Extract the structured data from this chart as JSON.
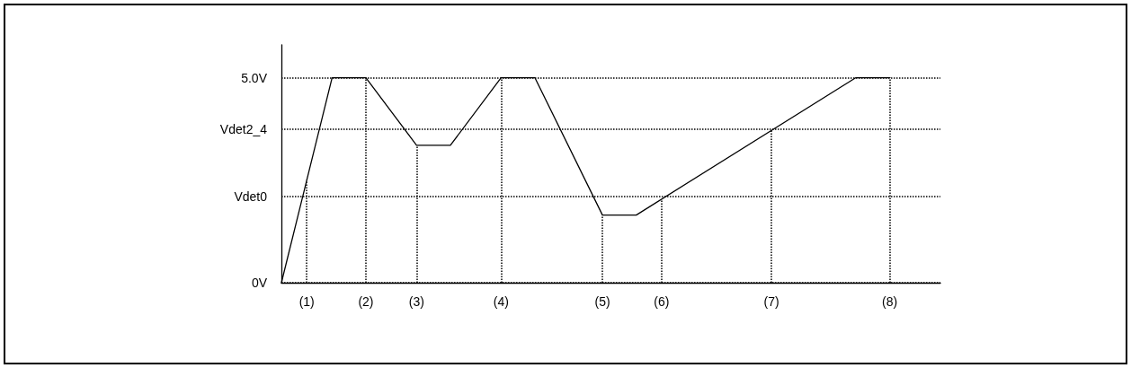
{
  "chart_data": {
    "type": "line",
    "categories": [
      null,
      null,
      null,
      "(1)",
      null,
      null,
      null,
      null,
      null,
      null,
      "(2)",
      null,
      null,
      null,
      null,
      null,
      "(3)",
      null,
      null,
      null,
      null,
      null,
      null,
      null,
      null,
      null,
      "(4)",
      null,
      null,
      null,
      null,
      null,
      null,
      null,
      null,
      null,
      null,
      null,
      "(5)",
      null,
      null,
      null,
      null,
      null,
      null,
      "(6)",
      null,
      null,
      null,
      null,
      null,
      null,
      null,
      null,
      null,
      null,
      null,
      null,
      "(7)",
      null,
      null,
      null,
      null,
      null,
      null,
      null,
      null,
      null,
      null,
      null,
      null,
      null,
      "(8)",
      null,
      null,
      null,
      null,
      null,
      null
    ],
    "series": [
      {
        "color": "#000000",
        "values": [
          0,
          null,
          null,
          null,
          null,
          null,
          5,
          null,
          null,
          null,
          5,
          null,
          null,
          null,
          null,
          null,
          3.35,
          null,
          null,
          null,
          3.35,
          null,
          null,
          null,
          null,
          null,
          5,
          null,
          null,
          null,
          5,
          null,
          null,
          null,
          null,
          null,
          null,
          null,
          1.65,
          null,
          null,
          null,
          1.65,
          null,
          null,
          null,
          null,
          null,
          null,
          null,
          null,
          null,
          null,
          null,
          null,
          null,
          null,
          null,
          null,
          null,
          null,
          null,
          null,
          null,
          null,
          null,
          null,
          null,
          5,
          null,
          null,
          null,
          5,
          null,
          null,
          null,
          null,
          null,
          null
        ]
      }
    ],
    "ylim": [
      0,
      5.8
    ],
    "yticks": [
      {
        "value": 0,
        "label": "0V"
      },
      {
        "value": 2.1,
        "label": "Vdet0"
      },
      {
        "value": 3.75,
        "label": "Vdet2_4"
      },
      {
        "value": 5,
        "label": "5.0V"
      }
    ],
    "grid": "y",
    "marker": "none",
    "line_style": "solid",
    "ref_lines": [
      {
        "axis": "x",
        "value": "(1)",
        "line_style": "dotted"
      },
      {
        "axis": "x",
        "value": "(2)",
        "line_style": "dotted"
      },
      {
        "axis": "x",
        "value": "(3)",
        "line_style": "dotted"
      },
      {
        "axis": "x",
        "value": "(4)",
        "line_style": "dotted"
      },
      {
        "axis": "x",
        "value": "(5)",
        "line_style": "dotted"
      },
      {
        "axis": "x",
        "value": "(6)",
        "line_style": "dotted"
      },
      {
        "axis": "x",
        "value": "(7)",
        "line_style": "dotted"
      },
      {
        "axis": "x",
        "value": "(8)",
        "line_style": "dotted"
      }
    ]
  }
}
